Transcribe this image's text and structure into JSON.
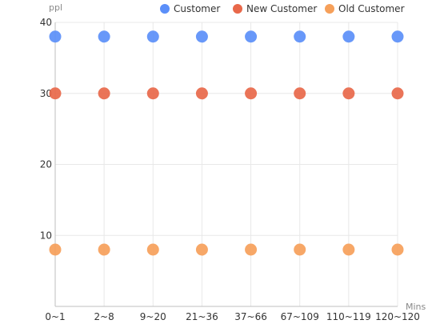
{
  "chart_data": {
    "type": "scatter",
    "title": "",
    "xlabel": "Mins",
    "ylabel": "ppl",
    "categories": [
      "0~1",
      "2~8",
      "9~20",
      "21~36",
      "37~66",
      "67~109",
      "110~119",
      "120~120"
    ],
    "ylim": [
      0,
      40
    ],
    "yticks": [
      10,
      20,
      30,
      40
    ],
    "grid": true,
    "legend_position": "top-right",
    "series": [
      {
        "name": "Customer",
        "color": "#5B8FF9",
        "values": [
          38,
          38,
          38,
          38,
          38,
          38,
          38,
          38
        ]
      },
      {
        "name": "New Customer",
        "color": "#E8684A",
        "values": [
          30,
          30,
          30,
          30,
          30,
          30,
          30,
          30
        ]
      },
      {
        "name": "Old Customer",
        "color": "#F6A05A",
        "values": [
          8,
          8,
          8,
          8,
          8,
          8,
          8,
          8
        ]
      }
    ]
  }
}
